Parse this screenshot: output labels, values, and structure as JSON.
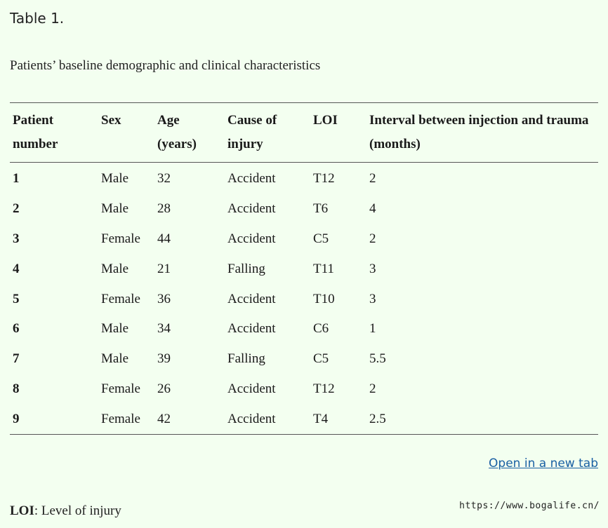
{
  "table_label": "Table 1.",
  "caption": "Patients’ baseline demographic and clinical characteristics",
  "table": {
    "headers": [
      "Patient number",
      "Sex",
      "Age (years)",
      "Cause of injury",
      "LOI",
      "Interval between injection and trauma (months)"
    ],
    "rows": [
      [
        "1",
        "Male",
        "32",
        "Accident",
        "T12",
        "2"
      ],
      [
        "2",
        "Male",
        "28",
        "Accident",
        "T6",
        "4"
      ],
      [
        "3",
        "Female",
        "44",
        "Accident",
        "C5",
        "2"
      ],
      [
        "4",
        "Male",
        "21",
        "Falling",
        "T11",
        "3"
      ],
      [
        "5",
        "Female",
        "36",
        "Accident",
        "T10",
        "3"
      ],
      [
        "6",
        "Male",
        "34",
        "Accident",
        "C6",
        "1"
      ],
      [
        "7",
        "Male",
        "39",
        "Falling",
        "C5",
        "5.5"
      ],
      [
        "8",
        "Female",
        "26",
        "Accident",
        "T12",
        "2"
      ],
      [
        "9",
        "Female",
        "42",
        "Accident",
        "T4",
        "2.5"
      ]
    ]
  },
  "open_link": "Open in a new tab",
  "footnote": {
    "abbr": "LOI",
    "text": ": Level of injury"
  },
  "watermark": "https://www.bogalife.cn/",
  "colors": {
    "background": "#f3fff0",
    "link": "#1a5fa3",
    "rule": "#555555"
  }
}
